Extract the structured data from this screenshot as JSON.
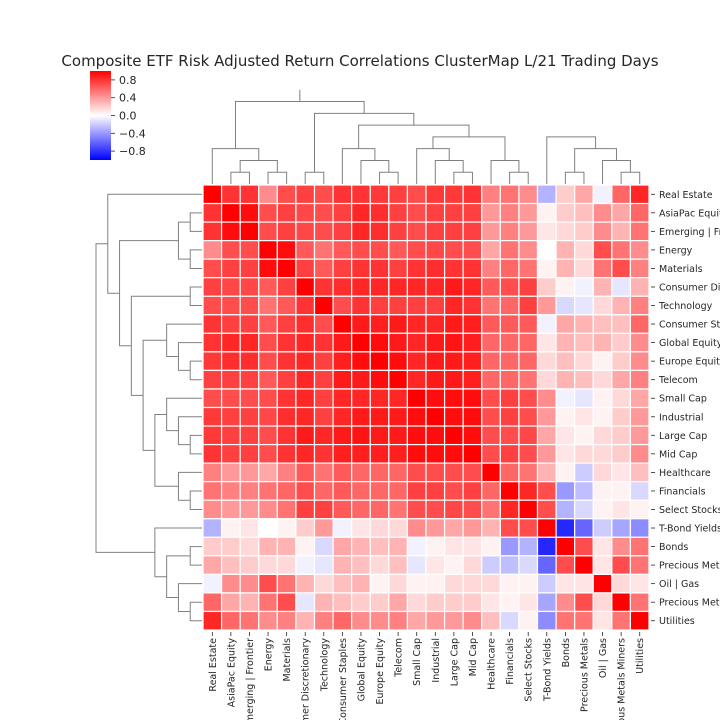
{
  "chart_data": {
    "type": "heatmap",
    "title": "Composite ETF Risk Adjusted Return Correlations ClusterMap L/21 Trading Days",
    "colormap": "bwr",
    "vmin": -1.0,
    "vmax": 1.0,
    "colorbar_ticks": [
      0.8,
      0.4,
      0.0,
      -0.4,
      -0.8
    ],
    "colorbar_tick_labels": [
      "0.8",
      "0.4",
      "0.0",
      "−0.4",
      "−0.8"
    ],
    "column_labels": [
      "Real Estate",
      "AsiaPac Equity",
      "Emerging | Frontier",
      "Energy",
      "Materials",
      "Consumer Discretionary",
      "Technology",
      "Consumer Staples",
      "Global Equity",
      "Europe Equity",
      "Telecom",
      "Small Cap",
      "Industrial",
      "Large Cap",
      "Mid Cap",
      "Healthcare",
      "Financials",
      "Select Stocks",
      "T-Bond Yields",
      "Bonds",
      "Precious Metals",
      "Oil | Gas",
      "Precious Metals Miners",
      "Utilities"
    ],
    "row_labels": [
      "Real Estate",
      "AsiaPac Equity",
      "Emerging | Frontier",
      "Energy",
      "Materials",
      "Consumer Discretionary",
      "Technology",
      "Consumer Staples",
      "Global Equity",
      "Europe Equity",
      "Telecom",
      "Small Cap",
      "Industrial",
      "Large Cap",
      "Mid Cap",
      "Healthcare",
      "Financials",
      "Select Stocks",
      "T-Bond Yields",
      "Bonds",
      "Precious Metals",
      "Oil | Gas",
      "Precious Metals Miners",
      "Utilities"
    ],
    "values": [
      [
        1.0,
        0.8,
        0.8,
        0.45,
        0.7,
        0.75,
        0.7,
        0.8,
        0.8,
        0.78,
        0.75,
        0.7,
        0.78,
        0.78,
        0.8,
        0.5,
        0.55,
        0.45,
        -0.3,
        0.2,
        0.35,
        -0.05,
        0.6,
        0.85
      ],
      [
        0.8,
        1.0,
        0.95,
        0.7,
        0.75,
        0.72,
        0.7,
        0.75,
        0.85,
        0.82,
        0.75,
        0.7,
        0.75,
        0.75,
        0.75,
        0.4,
        0.5,
        0.4,
        0.05,
        0.2,
        0.25,
        0.45,
        0.35,
        0.6
      ],
      [
        0.8,
        0.95,
        1.0,
        0.7,
        0.75,
        0.72,
        0.7,
        0.75,
        0.85,
        0.82,
        0.75,
        0.7,
        0.75,
        0.75,
        0.75,
        0.4,
        0.5,
        0.4,
        0.1,
        0.15,
        0.2,
        0.45,
        0.3,
        0.55
      ],
      [
        0.45,
        0.7,
        0.7,
        1.0,
        0.95,
        0.65,
        0.55,
        0.65,
        0.7,
        0.7,
        0.65,
        0.7,
        0.72,
        0.7,
        0.7,
        0.35,
        0.55,
        0.45,
        0.0,
        0.3,
        0.15,
        0.7,
        0.55,
        0.45
      ],
      [
        0.7,
        0.75,
        0.75,
        0.95,
        1.0,
        0.75,
        0.65,
        0.75,
        0.8,
        0.8,
        0.75,
        0.8,
        0.82,
        0.8,
        0.8,
        0.5,
        0.6,
        0.55,
        0.05,
        0.3,
        0.15,
        0.55,
        0.7,
        0.5
      ],
      [
        0.75,
        0.72,
        0.72,
        0.65,
        0.75,
        1.0,
        0.8,
        0.82,
        0.85,
        0.85,
        0.85,
        0.85,
        0.85,
        0.9,
        0.85,
        0.65,
        0.7,
        0.75,
        0.2,
        0.05,
        -0.05,
        0.3,
        -0.1,
        0.3
      ],
      [
        0.7,
        0.7,
        0.7,
        0.55,
        0.65,
        0.8,
        1.0,
        0.7,
        0.8,
        0.75,
        0.75,
        0.75,
        0.75,
        0.85,
        0.8,
        0.55,
        0.6,
        0.75,
        0.4,
        -0.15,
        -0.1,
        0.15,
        0.3,
        0.5
      ],
      [
        0.8,
        0.75,
        0.75,
        0.65,
        0.75,
        0.82,
        0.7,
        1.0,
        0.9,
        0.88,
        0.9,
        0.85,
        0.85,
        0.9,
        0.88,
        0.65,
        0.65,
        0.65,
        -0.05,
        0.35,
        0.3,
        0.25,
        0.25,
        0.6
      ],
      [
        0.8,
        0.85,
        0.85,
        0.7,
        0.8,
        0.85,
        0.8,
        0.9,
        1.0,
        0.95,
        0.9,
        0.85,
        0.9,
        0.92,
        0.88,
        0.6,
        0.6,
        0.6,
        0.1,
        0.3,
        0.25,
        0.3,
        0.2,
        0.45
      ],
      [
        0.78,
        0.82,
        0.82,
        0.7,
        0.8,
        0.85,
        0.75,
        0.88,
        0.95,
        1.0,
        0.95,
        0.85,
        0.9,
        0.9,
        0.88,
        0.6,
        0.6,
        0.6,
        0.15,
        0.25,
        0.15,
        0.05,
        0.2,
        0.45
      ],
      [
        0.75,
        0.75,
        0.75,
        0.65,
        0.75,
        0.85,
        0.75,
        0.9,
        0.9,
        0.95,
        1.0,
        0.85,
        0.9,
        0.9,
        0.88,
        0.6,
        0.6,
        0.55,
        0.15,
        0.3,
        0.25,
        0.15,
        0.35,
        0.5
      ],
      [
        0.7,
        0.7,
        0.7,
        0.7,
        0.8,
        0.85,
        0.75,
        0.85,
        0.85,
        0.85,
        0.85,
        1.0,
        0.95,
        0.95,
        0.95,
        0.7,
        0.75,
        0.7,
        0.45,
        -0.05,
        -0.1,
        0.05,
        0.15,
        0.35
      ],
      [
        0.78,
        0.75,
        0.75,
        0.72,
        0.82,
        0.85,
        0.75,
        0.85,
        0.9,
        0.9,
        0.9,
        0.95,
        1.0,
        0.95,
        0.95,
        0.7,
        0.75,
        0.7,
        0.4,
        0.05,
        0.1,
        0.05,
        0.2,
        0.4
      ],
      [
        0.78,
        0.75,
        0.75,
        0.7,
        0.8,
        0.9,
        0.85,
        0.9,
        0.92,
        0.9,
        0.9,
        0.95,
        0.95,
        1.0,
        0.95,
        0.7,
        0.7,
        0.72,
        0.35,
        0.1,
        0.05,
        0.15,
        0.2,
        0.4
      ],
      [
        0.8,
        0.75,
        0.75,
        0.7,
        0.8,
        0.85,
        0.8,
        0.88,
        0.88,
        0.88,
        0.88,
        0.95,
        0.95,
        0.95,
        1.0,
        0.7,
        0.75,
        0.7,
        0.4,
        0.1,
        0.15,
        0.15,
        0.2,
        0.45
      ],
      [
        0.5,
        0.4,
        0.4,
        0.35,
        0.5,
        0.65,
        0.55,
        0.65,
        0.6,
        0.6,
        0.6,
        0.7,
        0.7,
        0.7,
        0.7,
        1.0,
        0.6,
        0.55,
        0.3,
        0.05,
        -0.2,
        0.15,
        0.1,
        0.25
      ],
      [
        0.55,
        0.5,
        0.5,
        0.55,
        0.6,
        0.7,
        0.6,
        0.65,
        0.6,
        0.6,
        0.6,
        0.75,
        0.75,
        0.7,
        0.75,
        0.6,
        1.0,
        0.85,
        0.7,
        -0.4,
        -0.25,
        0.05,
        0.05,
        -0.15
      ],
      [
        0.45,
        0.4,
        0.4,
        0.45,
        0.55,
        0.75,
        0.75,
        0.65,
        0.6,
        0.6,
        0.55,
        0.7,
        0.7,
        0.72,
        0.7,
        0.55,
        0.85,
        1.0,
        0.7,
        -0.3,
        -0.15,
        0.05,
        0.1,
        0.05
      ],
      [
        -0.3,
        0.05,
        0.1,
        0.0,
        0.05,
        0.2,
        0.4,
        -0.05,
        0.1,
        0.15,
        0.15,
        0.45,
        0.4,
        0.35,
        0.4,
        0.3,
        0.7,
        0.7,
        1.0,
        -0.85,
        -0.6,
        -0.2,
        -0.35,
        -0.45
      ],
      [
        0.2,
        0.2,
        0.15,
        0.3,
        0.3,
        0.05,
        -0.15,
        0.35,
        0.3,
        0.25,
        0.3,
        -0.05,
        0.05,
        0.1,
        0.1,
        0.05,
        -0.4,
        -0.3,
        -0.85,
        1.0,
        0.7,
        0.1,
        0.45,
        0.55
      ],
      [
        0.35,
        0.25,
        0.2,
        0.15,
        0.15,
        -0.05,
        -0.1,
        0.3,
        0.25,
        0.15,
        0.25,
        -0.1,
        0.1,
        0.05,
        0.15,
        -0.2,
        -0.25,
        -0.15,
        -0.6,
        0.7,
        1.0,
        0.1,
        0.7,
        0.55
      ],
      [
        -0.05,
        0.45,
        0.45,
        0.7,
        0.55,
        0.3,
        0.15,
        0.25,
        0.3,
        0.05,
        0.15,
        0.05,
        0.05,
        0.15,
        0.15,
        0.15,
        0.05,
        0.05,
        -0.2,
        0.1,
        0.1,
        1.0,
        0.15,
        0.1
      ],
      [
        0.6,
        0.35,
        0.3,
        0.55,
        0.7,
        -0.1,
        0.3,
        0.25,
        0.2,
        0.2,
        0.35,
        0.15,
        0.2,
        0.2,
        0.2,
        0.1,
        0.05,
        0.1,
        -0.35,
        0.45,
        0.7,
        0.15,
        1.0,
        0.55
      ],
      [
        0.85,
        0.6,
        0.55,
        0.45,
        0.5,
        0.3,
        0.5,
        0.6,
        0.45,
        0.45,
        0.5,
        0.35,
        0.4,
        0.4,
        0.45,
        0.25,
        -0.15,
        0.05,
        -0.45,
        0.55,
        0.55,
        0.1,
        0.55,
        1.0
      ]
    ],
    "legend_position": "top-left",
    "xlabel": "",
    "ylabel": ""
  }
}
